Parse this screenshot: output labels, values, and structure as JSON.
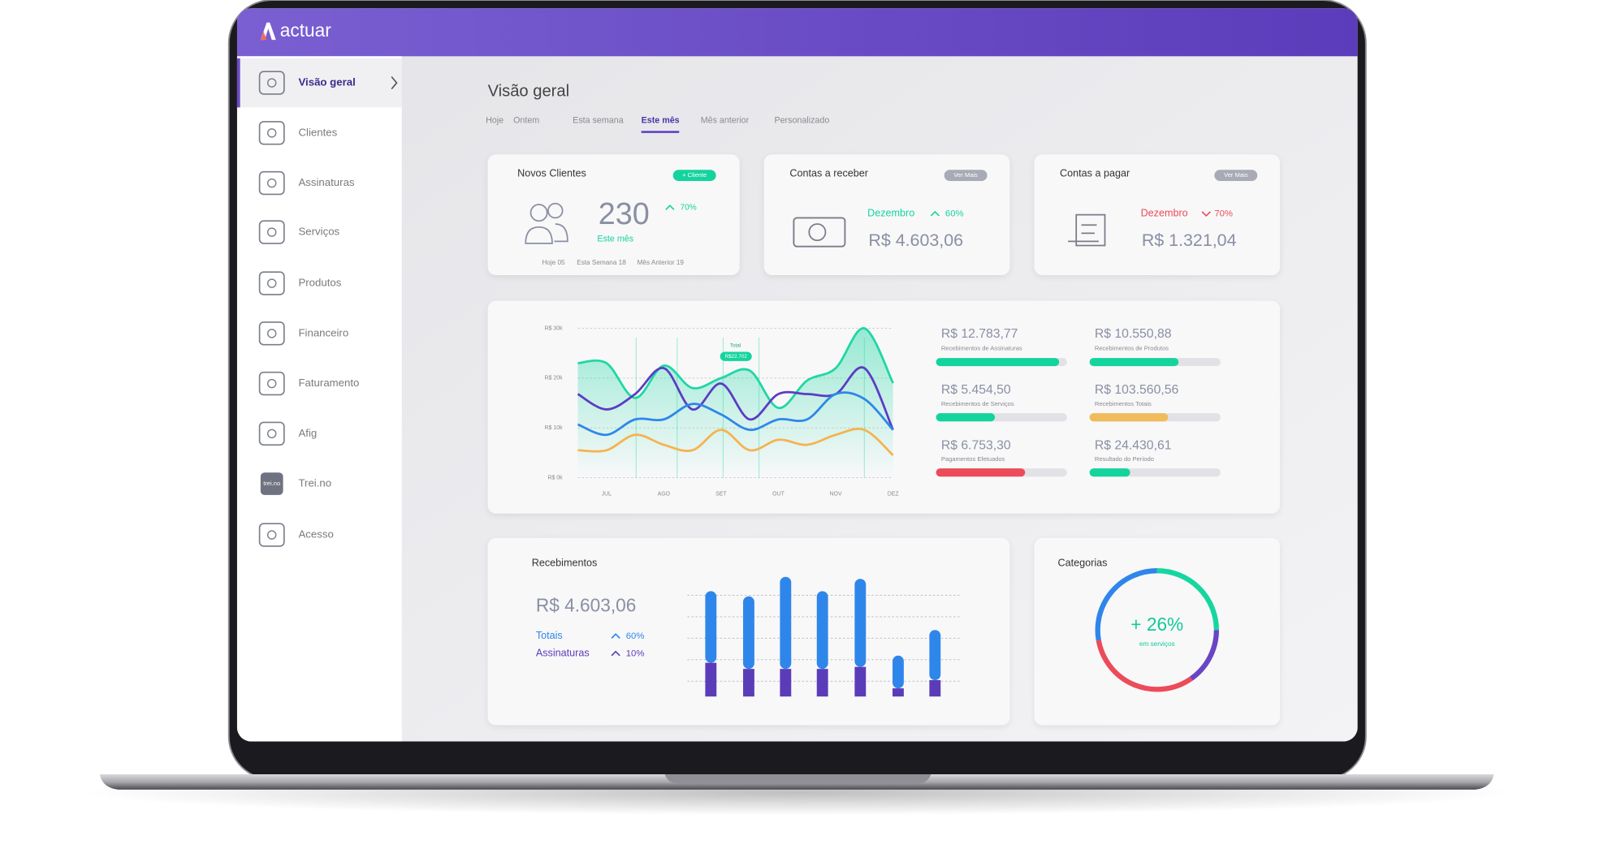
{
  "header": {
    "logo": "actuar"
  },
  "sidebar": {
    "items": [
      "Visão geral",
      "Clientes",
      "Assinaturas",
      "Serviços",
      "Produtos",
      "Financeiro",
      "Faturamento",
      "Afig",
      "Trei.no",
      "Acesso"
    ],
    "icon_label": "trei.no"
  },
  "page": {
    "title": "Visão geral",
    "tabs": [
      "Hoje",
      "Ontem",
      "Esta semana",
      "Este mês",
      "Mês anterior",
      "Personalizado"
    ],
    "active_tab": 3
  },
  "cards": {
    "novos_clientes": {
      "title": "Novos Clientes",
      "button": "+ Cliente",
      "count": 230,
      "change": "70%",
      "period": "Este mês",
      "history": [
        "Hoje 05",
        "Esta Semana 18",
        "Mês Anterior 19"
      ]
    },
    "contas_receber": {
      "title": "Contas a receber",
      "button": "Ver Mais",
      "month": "Dezembro",
      "change": "60%",
      "amount": "R$ 4.603,06"
    },
    "contas_pagar": {
      "title": "Contas a pagar",
      "button": "Ver Mais",
      "month": "Dezembro",
      "change": "70%",
      "amount": "R$ 1.321,04"
    },
    "categorias": {
      "title": "Categorias",
      "value": "+ 26%",
      "caption": "em serviços"
    }
  },
  "stats": [
    {
      "amount": "R$ 12.783,77",
      "label": "Recebimentos de Assinaturas",
      "progress": 94,
      "color": "#14d49e"
    },
    {
      "amount": "R$ 10.550,88",
      "label": "Recebimentos de Produtos",
      "progress": 68,
      "color": "#14d49e"
    },
    {
      "amount": "R$ 5.454,50",
      "label": "Recebimentos de Serviços",
      "progress": 45,
      "color": "#14d49e"
    },
    {
      "amount": "R$ 103.560,56",
      "label": "Recebimentos Totais",
      "progress": 60,
      "color": "#f0bb5a"
    },
    {
      "amount": "R$ 6.753,30",
      "label": "Pagamentos Efetuados",
      "progress": 68,
      "color": "#ec4b5a"
    },
    {
      "amount": "R$ 24.430,61",
      "label": "Resultado do Período",
      "progress": 31,
      "color": "#14d49e"
    }
  ],
  "chart_data": [
    {
      "type": "line",
      "categories": [
        null,
        "JUL",
        null,
        "AGO",
        null,
        "SET",
        null,
        "OUT",
        null,
        "NOV",
        null,
        "DEZ"
      ],
      "ylim": [
        0,
        30000
      ],
      "yticks": [
        {
          "value": 0,
          "label": "R$ 0k"
        },
        {
          "value": 10000,
          "label": "R$ 10k"
        },
        {
          "value": 20000,
          "label": "R$ 20k"
        },
        {
          "value": 30000,
          "label": "R$ 30k"
        }
      ],
      "grid": true,
      "annotations": [
        "Total",
        "R$22.702"
      ],
      "series": [
        {
          "color": "#1fd7a4",
          "values": [
            23000,
            23000,
            16000,
            22500,
            18000,
            20000,
            21500,
            14000,
            19500,
            22000,
            30000,
            19000
          ]
        },
        {
          "color": "#5b3cc4",
          "values": [
            16800,
            13700,
            16800,
            22000,
            13700,
            18900,
            11700,
            16800,
            16800,
            16800,
            22000,
            9600
          ]
        },
        {
          "color": "#2f86ea",
          "values": [
            10700,
            8600,
            11700,
            11700,
            14800,
            12700,
            9600,
            11700,
            11700,
            16800,
            15800,
            9600
          ]
        },
        {
          "color": "#f5b34f",
          "values": [
            5500,
            5500,
            8600,
            6600,
            5500,
            9600,
            5500,
            7600,
            6600,
            8600,
            9600,
            4500
          ]
        }
      ]
    },
    {
      "type": "bar",
      "title": "Recebimentos",
      "subtitle": "R$ 4.603,06",
      "categories": [
        null,
        null,
        null,
        null,
        null,
        null,
        null
      ],
      "series": [
        {
          "name": "Assinaturas",
          "change": "10%",
          "color": "#5b3cb8",
          "values": [
            33,
            27,
            27,
            27,
            29,
            8,
            16
          ]
        },
        {
          "name": "Totais",
          "change": "60%",
          "color": "#2f86ea",
          "values": [
            70,
            71,
            90,
            76,
            86,
            32,
            49
          ]
        }
      ]
    }
  ]
}
